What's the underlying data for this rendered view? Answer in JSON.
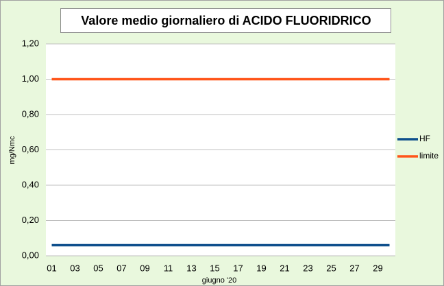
{
  "chart_data": {
    "type": "line",
    "title": "Valore medio giornaliero di ACIDO FLUORIDRICO",
    "xlabel": "giugno '20",
    "ylabel": "mg/Nmc",
    "categories": [
      "01",
      null,
      "03",
      null,
      "05",
      null,
      "07",
      null,
      "09",
      null,
      "11",
      null,
      "13",
      null,
      "15",
      null,
      "17",
      null,
      "19",
      null,
      "21",
      null,
      "23",
      null,
      "25",
      null,
      "27",
      null,
      "29",
      null
    ],
    "series": [
      {
        "name": "HF",
        "color": "#0e4f8c",
        "values": [
          0.06,
          0.06,
          0.06,
          0.06,
          0.06,
          0.06,
          0.06,
          0.06,
          0.06,
          0.06,
          0.06,
          0.06,
          0.06,
          0.06,
          0.06,
          0.06,
          0.06,
          0.06,
          0.06,
          0.06,
          0.06,
          0.06,
          0.06,
          0.06,
          0.06,
          0.06,
          0.06,
          0.06,
          0.06,
          0.06
        ]
      },
      {
        "name": "limite",
        "color": "#ff5419",
        "values": [
          1,
          1,
          1,
          1,
          1,
          1,
          1,
          1,
          1,
          1,
          1,
          1,
          1,
          1,
          1,
          1,
          1,
          1,
          1,
          1,
          1,
          1,
          1,
          1,
          1,
          1,
          1,
          1,
          1,
          1
        ]
      }
    ],
    "ylim": [
      0,
      1.2
    ],
    "yticks": [
      {
        "value": 0,
        "label": "0,00"
      },
      {
        "value": 0.2,
        "label": "0,20"
      },
      {
        "value": 0.4,
        "label": "0,40"
      },
      {
        "value": 0.6,
        "label": "0,60"
      },
      {
        "value": 0.8,
        "label": "0,80"
      },
      {
        "value": 1,
        "label": "1,00"
      },
      {
        "value": 1.2,
        "label": "1,20"
      }
    ],
    "grid": true,
    "legend": "right"
  }
}
